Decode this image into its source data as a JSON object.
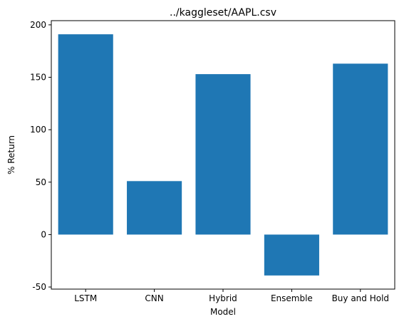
{
  "chart_data": {
    "type": "bar",
    "title": "../kaggleset/AAPL.csv",
    "xlabel": "Model",
    "ylabel": "% Return",
    "categories": [
      "LSTM",
      "CNN",
      "Hybrid",
      "Ensemble",
      "Buy and Hold"
    ],
    "values": [
      191,
      51,
      153,
      -39,
      163
    ],
    "ylim": [
      -52,
      204
    ],
    "yticks": [
      -50,
      0,
      50,
      100,
      150,
      200
    ],
    "bar_color": "#1f77b4",
    "grid": false,
    "legend": "none"
  }
}
